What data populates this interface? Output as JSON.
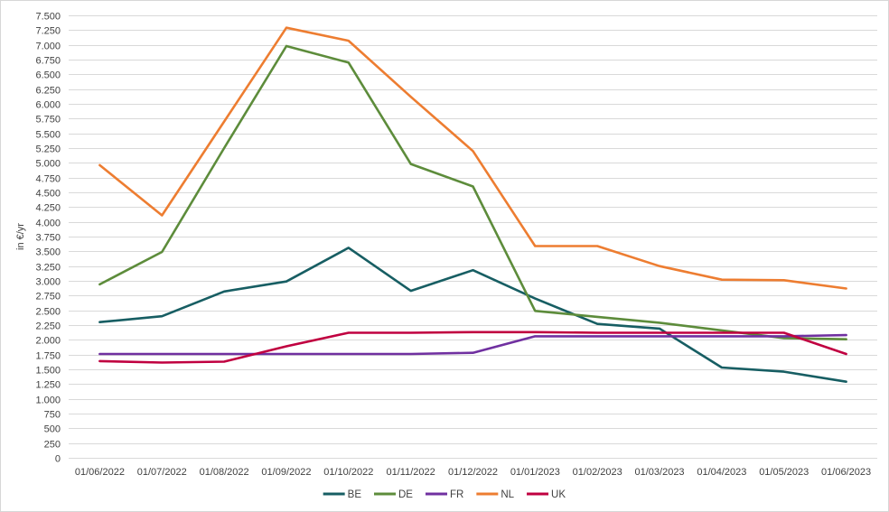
{
  "chart_data": {
    "type": "line",
    "title": "",
    "xlabel": "",
    "ylabel": "in €/yr",
    "ylim": [
      0,
      7500
    ],
    "y_tick_step": 250,
    "y_tick_labels": [
      "7.500",
      "7.250",
      "7.000",
      "6.750",
      "6.500",
      "6.250",
      "6.000",
      "5.750",
      "5.500",
      "5.250",
      "5.000",
      "4.750",
      "4.500",
      "4.250",
      "4.000",
      "3.750",
      "3.500",
      "3.250",
      "3.000",
      "2.750",
      "2.500",
      "2.250",
      "2.000",
      "1.750",
      "1.500",
      "1.250",
      "1.000",
      "750",
      "500",
      "250",
      "0"
    ],
    "grid": "horizontal",
    "gridline_color": "#d9d9d9",
    "legend_position": "bottom",
    "categories": [
      "01/06/2022",
      "01/07/2022",
      "01/08/2022",
      "01/09/2022",
      "01/10/2022",
      "01/11/2022",
      "01/12/2022",
      "01/01/2023",
      "01/02/2023",
      "01/03/2023",
      "01/04/2023",
      "01/05/2023",
      "01/06/2023"
    ],
    "series": [
      {
        "name": "BE",
        "color": "#175e63",
        "values": [
          2300,
          2400,
          2820,
          2990,
          3560,
          2830,
          3180,
          2700,
          2270,
          2190,
          1530,
          1460,
          1290
        ]
      },
      {
        "name": "DE",
        "color": "#5d8c3b",
        "values": [
          2940,
          3490,
          5250,
          6980,
          6700,
          4980,
          4600,
          2490,
          2390,
          2290,
          2160,
          2030,
          2010
        ]
      },
      {
        "name": "FR",
        "color": "#7030a0",
        "values": [
          1760,
          1760,
          1760,
          1760,
          1760,
          1760,
          1780,
          2060,
          2060,
          2060,
          2060,
          2060,
          2080
        ]
      },
      {
        "name": "NL",
        "color": "#ed7d31",
        "values": [
          4960,
          4110,
          5700,
          7290,
          7070,
          6120,
          5200,
          3590,
          3590,
          3250,
          3020,
          3010,
          2870
        ]
      },
      {
        "name": "UK",
        "color": "#c00040",
        "values": [
          1640,
          1615,
          1630,
          1890,
          2120,
          2120,
          2130,
          2130,
          2120,
          2120,
          2120,
          2120,
          1760
        ]
      }
    ]
  }
}
